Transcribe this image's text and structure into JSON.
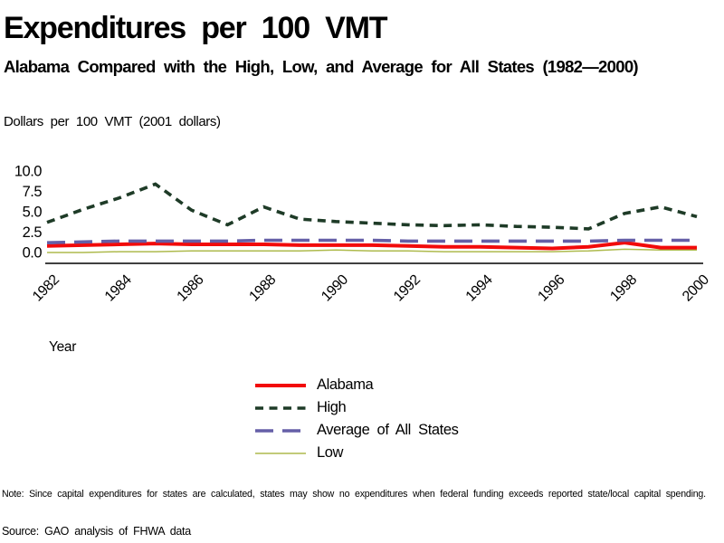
{
  "header": {
    "title": "Expenditures per 100 VMT",
    "subtitle": "Alabama Compared with the High, Low, and Average for All States (1982—2000)"
  },
  "chart": {
    "y_axis_title": "Dollars per 100 VMT (2001 dollars)",
    "x_axis_title": "Year",
    "x_tick_labels": [
      "1982",
      "1984",
      "1986",
      "1988",
      "1990",
      "1992",
      "1994",
      "1996",
      "1998",
      "2000"
    ],
    "y_tick_labels": [
      "0.0",
      "2.5",
      "5.0",
      "7.5",
      "10.0"
    ]
  },
  "chart_data": {
    "type": "line",
    "title": "Expenditures per 100 VMT",
    "subtitle": "Alabama Compared with the High, Low, and Average for All States (1982—2000)",
    "xlabel": "Year",
    "ylabel": "Dollars per 100 VMT (2001 dollars)",
    "xlim": [
      1982,
      2000
    ],
    "ylim": [
      0,
      10
    ],
    "y_ticks": [
      0,
      2.5,
      5,
      7.5,
      10
    ],
    "grid": false,
    "legend_position": "bottom-center",
    "x": [
      1982,
      1983,
      1984,
      1985,
      1986,
      1987,
      1988,
      1989,
      1990,
      1991,
      1992,
      1993,
      1994,
      1995,
      1996,
      1997,
      1998,
      1999,
      2000
    ],
    "series": [
      {
        "name": "Alabama",
        "color": "#f20a0a",
        "style": "solid",
        "width": 4,
        "values": [
          0.8,
          0.9,
          1.0,
          1.1,
          1.0,
          1.0,
          1.0,
          0.9,
          0.9,
          0.9,
          0.8,
          0.7,
          0.7,
          0.6,
          0.5,
          0.7,
          1.2,
          0.6,
          0.6
        ]
      },
      {
        "name": "High",
        "color": "#1e3b27",
        "style": "dashed",
        "width": 3.6,
        "values": [
          3.7,
          5.3,
          6.7,
          8.4,
          5.2,
          3.4,
          5.6,
          4.1,
          3.8,
          3.6,
          3.4,
          3.3,
          3.4,
          3.2,
          3.1,
          2.9,
          4.8,
          5.6,
          4.4
        ]
      },
      {
        "name": "Average of All States",
        "color": "#655fa7",
        "style": "long-dash",
        "width": 3.6,
        "values": [
          1.2,
          1.3,
          1.4,
          1.4,
          1.4,
          1.4,
          1.5,
          1.5,
          1.5,
          1.5,
          1.4,
          1.4,
          1.4,
          1.4,
          1.4,
          1.4,
          1.5,
          1.5,
          1.5
        ]
      },
      {
        "name": "Low",
        "color": "#aeba4d",
        "style": "solid",
        "width": 1.5,
        "values": [
          0.0,
          0.0,
          0.1,
          0.1,
          0.2,
          0.2,
          0.2,
          0.2,
          0.3,
          0.2,
          0.2,
          0.1,
          0.1,
          0.1,
          0.1,
          0.2,
          0.4,
          0.3,
          0.3
        ]
      }
    ]
  },
  "footer": {
    "note": "Note: Since capital expenditures for states are calculated, states may show no expenditures when federal funding exceeds reported state/local capital spending.",
    "source": "Source: GAO analysis of FHWA data"
  }
}
